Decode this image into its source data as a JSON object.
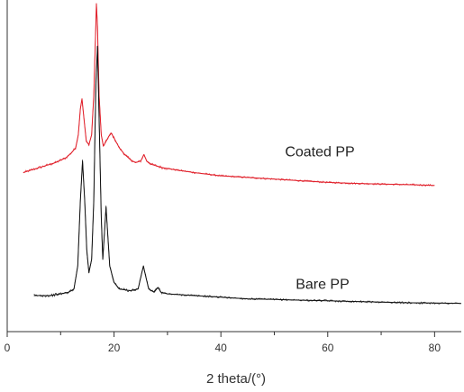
{
  "chart_data": {
    "type": "line",
    "title": "",
    "xlabel": "2 theta/(°)",
    "ylabel": "",
    "xlim": [
      0,
      85
    ],
    "ylim": [
      0,
      100
    ],
    "y_ticks_shown": false,
    "grid": false,
    "legend": "none",
    "x_ticks": [
      0,
      20,
      40,
      60,
      80
    ],
    "series": [
      {
        "name": "Coated PP",
        "color": "#e0202a",
        "points": [
          [
            3,
            48.5
          ],
          [
            5,
            49.5
          ],
          [
            7,
            50.5
          ],
          [
            9,
            51.5
          ],
          [
            11,
            53
          ],
          [
            12,
            54.5
          ],
          [
            12.8,
            56
          ],
          [
            13.3,
            60
          ],
          [
            13.7,
            68
          ],
          [
            14,
            71
          ],
          [
            14.3,
            66
          ],
          [
            14.8,
            58
          ],
          [
            15.3,
            57
          ],
          [
            15.8,
            60
          ],
          [
            16.2,
            72
          ],
          [
            16.5,
            88
          ],
          [
            16.7,
            100
          ],
          [
            16.9,
            93
          ],
          [
            17.2,
            72
          ],
          [
            17.6,
            60
          ],
          [
            18,
            56.5
          ],
          [
            18.5,
            58
          ],
          [
            19,
            59.5
          ],
          [
            19.5,
            60.5
          ],
          [
            20,
            59
          ],
          [
            21,
            56
          ],
          [
            22,
            54
          ],
          [
            23,
            52.5
          ],
          [
            24,
            51.5
          ],
          [
            25,
            52
          ],
          [
            25.6,
            54
          ],
          [
            26.1,
            52
          ],
          [
            27,
            51
          ],
          [
            29,
            50
          ],
          [
            32,
            49.2
          ],
          [
            35,
            48.5
          ],
          [
            40,
            47.5
          ],
          [
            45,
            47
          ],
          [
            50,
            46.5
          ],
          [
            55,
            46
          ],
          [
            60,
            45.5
          ],
          [
            65,
            45.2
          ],
          [
            70,
            45
          ],
          [
            75,
            44.8
          ],
          [
            80,
            44.6
          ]
        ]
      },
      {
        "name": "Bare PP",
        "color": "#111111",
        "points": [
          [
            5,
            11
          ],
          [
            8,
            11
          ],
          [
            10,
            11.5
          ],
          [
            11.5,
            12
          ],
          [
            12.5,
            13
          ],
          [
            13.2,
            20
          ],
          [
            13.7,
            40
          ],
          [
            14.1,
            52
          ],
          [
            14.5,
            40
          ],
          [
            14.9,
            25
          ],
          [
            15.3,
            18
          ],
          [
            15.8,
            22
          ],
          [
            16.2,
            40
          ],
          [
            16.6,
            75
          ],
          [
            16.9,
            87
          ],
          [
            17.2,
            65
          ],
          [
            17.6,
            35
          ],
          [
            17.9,
            22
          ],
          [
            18.2,
            30
          ],
          [
            18.5,
            38
          ],
          [
            18.8,
            30
          ],
          [
            19.2,
            20
          ],
          [
            20,
            15
          ],
          [
            21,
            13
          ],
          [
            23,
            12.5
          ],
          [
            24.5,
            13
          ],
          [
            25.2,
            18
          ],
          [
            25.5,
            20
          ],
          [
            25.9,
            17
          ],
          [
            26.5,
            13
          ],
          [
            27.5,
            12
          ],
          [
            28.2,
            13.5
          ],
          [
            28.8,
            12
          ],
          [
            30,
            11.5
          ],
          [
            35,
            11
          ],
          [
            40,
            10.5
          ],
          [
            45,
            10
          ],
          [
            50,
            9.8
          ],
          [
            55,
            9.6
          ],
          [
            60,
            9.4
          ],
          [
            65,
            9.2
          ],
          [
            70,
            9
          ],
          [
            75,
            8.8
          ],
          [
            80,
            8.7
          ],
          [
            85,
            8.6
          ]
        ]
      }
    ],
    "annotations": [
      {
        "text": "Coated PP",
        "x": 52,
        "y": 53.5
      },
      {
        "text": "Bare PP",
        "x": 54,
        "y": 13
      }
    ]
  }
}
